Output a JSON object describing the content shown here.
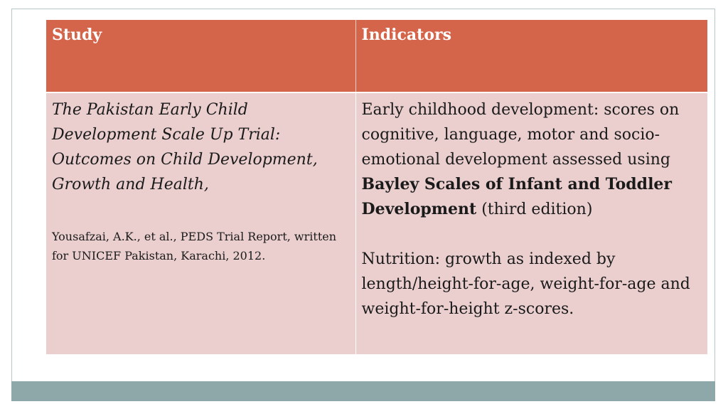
{
  "table": {
    "headers": [
      "Study",
      "Indicators"
    ],
    "study": {
      "title": "The Pakistan Early Child Development Scale Up Trial: Outcomes on Child Development, Growth and Health",
      "title_suffix": ",",
      "reference": "Yousafzai, A.K., et al., PEDS Trial Report, written for UNICEF Pakistan, Karachi, 2012."
    },
    "indicators": {
      "ecd_intro": "Early childhood development: scores on cognitive, language, motor and socio-emotional development assessed using ",
      "ecd_scale": "Bayley Scales of Infant and Toddler Development",
      "ecd_tail": " (third edition)",
      "nutrition_main": "Nutrition: growth as indexed by length/height-for-age, weight-for-age and weight-for-height z-scores",
      "nutrition_tail": "."
    }
  },
  "colors": {
    "header_bg": "#d4654a",
    "row_bg": "#ebcfcf",
    "footer_bar": "#8ea8aa"
  }
}
